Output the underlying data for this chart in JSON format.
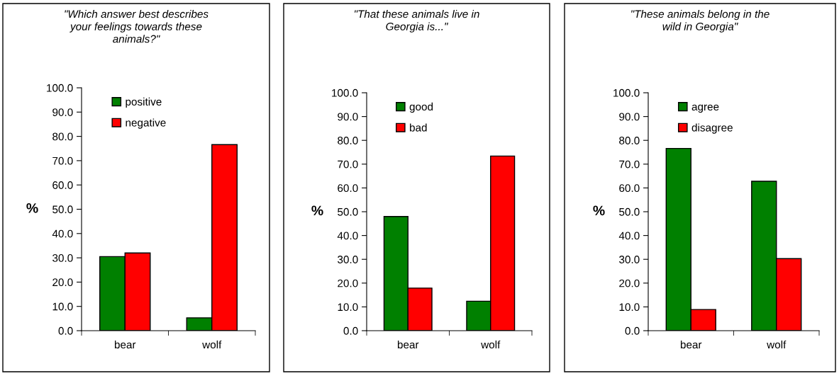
{
  "chart_data": [
    {
      "type": "bar",
      "title": "\"Which answer best describes\nyour feelings towards these\nanimals?\"",
      "ylabel": "%",
      "categories": [
        "bear",
        "wolf"
      ],
      "series": [
        {
          "name": "positive",
          "color": "#008000",
          "values": [
            30.5,
            5.3
          ]
        },
        {
          "name": "negative",
          "color": "#ff0000",
          "values": [
            32.0,
            76.6
          ]
        }
      ],
      "ylim": [
        0,
        100
      ],
      "yticks": [
        {
          "value": 0,
          "label": "0.0"
        },
        {
          "value": 10,
          "label": "10.0"
        },
        {
          "value": 20,
          "label": "20.0"
        },
        {
          "value": 30,
          "label": "30.0"
        },
        {
          "value": 40,
          "label": "40.0"
        },
        {
          "value": 50,
          "label": "50.0"
        },
        {
          "value": 60,
          "label": "60.0"
        },
        {
          "value": 70,
          "label": "70.0"
        },
        {
          "value": 80,
          "label": "80.0"
        },
        {
          "value": 90,
          "label": "90.0"
        },
        {
          "value": 100,
          "label": "100.0"
        }
      ],
      "grid": false,
      "legend": "top left"
    },
    {
      "type": "bar",
      "title": "\"That these animals live in\nGeorgia is...\"",
      "ylabel": "%",
      "categories": [
        "bear",
        "wolf"
      ],
      "series": [
        {
          "name": "good",
          "color": "#008000",
          "values": [
            48.0,
            12.4
          ]
        },
        {
          "name": "bad",
          "color": "#ff0000",
          "values": [
            17.9,
            73.4
          ]
        }
      ],
      "ylim": [
        0,
        100
      ],
      "yticks": [
        {
          "value": 0,
          "label": "0.0"
        },
        {
          "value": 10,
          "label": "10.0"
        },
        {
          "value": 20,
          "label": "20.0"
        },
        {
          "value": 30,
          "label": "30.0"
        },
        {
          "value": 40,
          "label": "40.0"
        },
        {
          "value": 50,
          "label": "50.0"
        },
        {
          "value": 60,
          "label": "60.0"
        },
        {
          "value": 70,
          "label": "70.0"
        },
        {
          "value": 80,
          "label": "80.0"
        },
        {
          "value": 90,
          "label": "90.0"
        },
        {
          "value": 100,
          "label": "100.0"
        }
      ],
      "grid": false,
      "legend": "top left"
    },
    {
      "type": "bar",
      "title": "\"These animals belong in the\nwild in Georgia\"",
      "ylabel": "%",
      "categories": [
        "bear",
        "wolf"
      ],
      "series": [
        {
          "name": "agree",
          "color": "#008000",
          "values": [
            76.6,
            62.8
          ]
        },
        {
          "name": "disagree",
          "color": "#ff0000",
          "values": [
            8.9,
            30.3
          ]
        }
      ],
      "ylim": [
        0,
        100
      ],
      "yticks": [
        {
          "value": 0,
          "label": "0.0"
        },
        {
          "value": 10,
          "label": "10.0"
        },
        {
          "value": 20,
          "label": "20.0"
        },
        {
          "value": 30,
          "label": "30.0"
        },
        {
          "value": 40,
          "label": "40.0"
        },
        {
          "value": 50,
          "label": "50.0"
        },
        {
          "value": 60,
          "label": "60.0"
        },
        {
          "value": 70,
          "label": "70.0"
        },
        {
          "value": 80,
          "label": "80.0"
        },
        {
          "value": 90,
          "label": "90.0"
        },
        {
          "value": 100,
          "label": "100.0"
        }
      ],
      "grid": false,
      "legend": "top left"
    }
  ]
}
